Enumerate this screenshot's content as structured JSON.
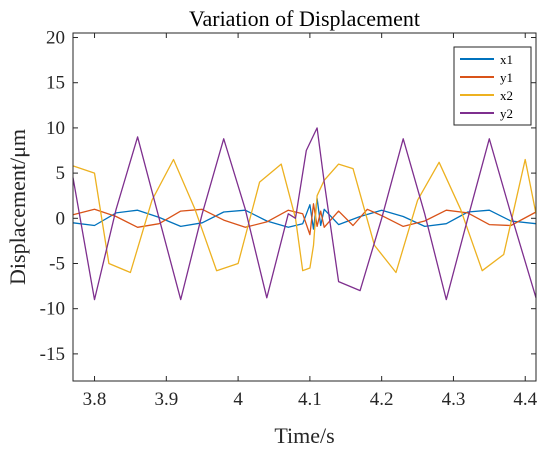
{
  "chart_data": {
    "type": "line",
    "title": "Variation of Displacement",
    "xlabel": "Time/s",
    "ylabel": "Displacement/μm",
    "xlim": [
      3.77,
      4.415
    ],
    "ylim": [
      -18,
      20.5
    ],
    "xticks": [
      3.8,
      3.9,
      4,
      4.1,
      4.2,
      4.3,
      4.4
    ],
    "xtick_labels": [
      "3.8",
      "3.9",
      "4",
      "4.1",
      "4.2",
      "4.3",
      "4.4"
    ],
    "yticks": [
      -15,
      -10,
      -5,
      0,
      5,
      10,
      15,
      20
    ],
    "ytick_labels": [
      "-15",
      "-10",
      "-5",
      "0",
      "5",
      "10",
      "15",
      "20"
    ],
    "grid": false,
    "legend_position": "top-right",
    "series": [
      {
        "name": "x1",
        "color": "#0072BD",
        "x": [
          3.77,
          3.8,
          3.83,
          3.86,
          3.89,
          3.92,
          3.95,
          3.98,
          4.01,
          4.04,
          4.07,
          4.09,
          4.1,
          4.105,
          4.11,
          4.115,
          4.12,
          4.14,
          4.17,
          4.2,
          4.23,
          4.26,
          4.29,
          4.32,
          4.35,
          4.38,
          4.415
        ],
        "y": [
          -0.5,
          -0.8,
          0.6,
          0.9,
          0.1,
          -0.9,
          -0.5,
          0.7,
          0.9,
          -0.3,
          -1.0,
          -0.6,
          1.5,
          -1.2,
          2.2,
          -0.8,
          1.0,
          -0.7,
          0.2,
          0.9,
          0.2,
          -0.9,
          -0.6,
          0.7,
          0.9,
          -0.3,
          -0.6
        ]
      },
      {
        "name": "y1",
        "color": "#D95319",
        "x": [
          3.77,
          3.8,
          3.83,
          3.86,
          3.89,
          3.92,
          3.95,
          3.98,
          4.01,
          4.04,
          4.07,
          4.09,
          4.1,
          4.105,
          4.11,
          4.115,
          4.12,
          4.14,
          4.16,
          4.18,
          4.2,
          4.23,
          4.26,
          4.29,
          4.32,
          4.35,
          4.38,
          4.415
        ],
        "y": [
          0.4,
          1.0,
          0.2,
          -1.0,
          -0.6,
          0.8,
          1.0,
          -0.2,
          -1.0,
          -0.4,
          0.9,
          0.5,
          -1.8,
          1.6,
          -0.9,
          0.8,
          -1.0,
          0.8,
          -0.8,
          1.0,
          0.3,
          -0.9,
          -0.3,
          0.9,
          0.6,
          -0.7,
          -0.8,
          0.7
        ]
      },
      {
        "name": "x2",
        "color": "#EDB120",
        "x": [
          3.77,
          3.8,
          3.82,
          3.85,
          3.88,
          3.91,
          3.94,
          3.97,
          4.0,
          4.03,
          4.06,
          4.08,
          4.09,
          4.1,
          4.105,
          4.11,
          4.12,
          4.14,
          4.16,
          4.19,
          4.22,
          4.25,
          4.28,
          4.31,
          4.34,
          4.37,
          4.4,
          4.415
        ],
        "y": [
          5.8,
          5.0,
          -5.0,
          -6.0,
          2.0,
          6.5,
          1.0,
          -5.8,
          -5.0,
          4.0,
          6.0,
          0.0,
          -5.8,
          -5.5,
          -3.0,
          2.5,
          4.2,
          6.0,
          5.5,
          -3.0,
          -6.0,
          2.0,
          6.2,
          1.0,
          -5.8,
          -4.0,
          6.5,
          0.5
        ]
      },
      {
        "name": "y2",
        "color": "#7E2F8E",
        "x": [
          3.77,
          3.8,
          3.83,
          3.86,
          3.89,
          3.92,
          3.95,
          3.98,
          4.01,
          4.04,
          4.07,
          4.08,
          4.095,
          4.11,
          4.12,
          4.14,
          4.17,
          4.2,
          4.23,
          4.26,
          4.29,
          4.32,
          4.35,
          4.38,
          4.415
        ],
        "y": [
          4.5,
          -9.0,
          1.0,
          9.0,
          0.0,
          -9.0,
          0.5,
          8.8,
          1.0,
          -8.8,
          0.5,
          0.0,
          7.5,
          10.0,
          4.0,
          -7.0,
          -8.0,
          0.0,
          8.8,
          0.5,
          -9.0,
          0.0,
          8.8,
          0.5,
          -8.8
        ]
      }
    ]
  }
}
